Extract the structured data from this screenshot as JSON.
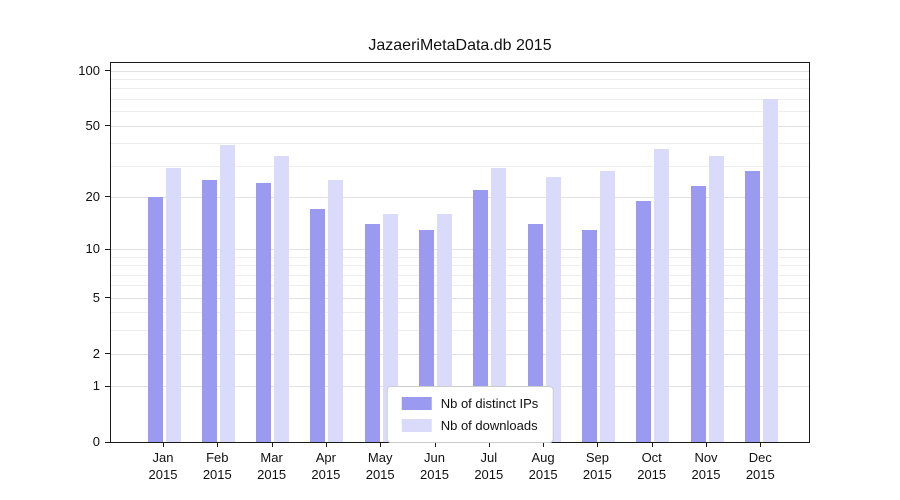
{
  "chart_data": {
    "type": "bar",
    "title": "JazaeriMetaData.db 2015",
    "categories": [
      "Jan",
      "Feb",
      "Mar",
      "Apr",
      "May",
      "Jun",
      "Jul",
      "Aug",
      "Sep",
      "Oct",
      "Nov",
      "Dec"
    ],
    "category_year": "2015",
    "series": [
      {
        "name": "Nb of distinct IPs",
        "color": "#9a9af0",
        "values": [
          20,
          25,
          24,
          17,
          14,
          13,
          22,
          14,
          13,
          19,
          23,
          28
        ]
      },
      {
        "name": "Nb of downloads",
        "color": "#dadafb",
        "values": [
          29,
          39,
          34,
          25,
          16,
          16,
          29,
          26,
          28,
          37,
          34,
          70
        ]
      }
    ],
    "xlabel": "",
    "ylabel": "",
    "yscale": "log1p",
    "ylim": [
      0,
      110
    ],
    "yticks": [
      0,
      1,
      2,
      5,
      10,
      20,
      50,
      100
    ],
    "minor_gridlines": [
      3,
      4,
      6,
      7,
      8,
      9,
      30,
      40,
      60,
      70,
      80,
      90
    ],
    "grid": true,
    "legend_position": "lower center"
  }
}
